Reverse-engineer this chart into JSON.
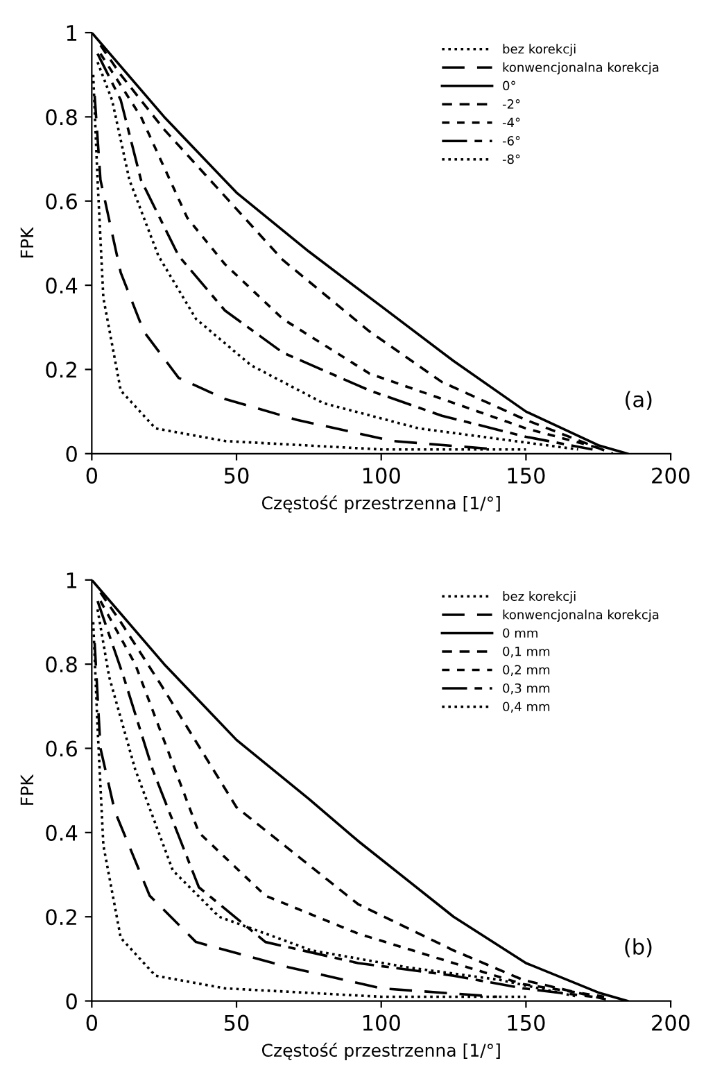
{
  "chart_data": [
    {
      "type": "line",
      "xlabel": "Częstość przestrzenna [1/°]",
      "ylabel": "FPK",
      "xlim": [
        0,
        200
      ],
      "xticks": [
        0,
        50,
        100,
        150,
        200
      ],
      "ylim": [
        0,
        1
      ],
      "yticks": [
        0,
        0.2,
        0.4,
        0.6,
        0.8,
        1
      ],
      "legend": "top right",
      "grid": false,
      "annotations": [
        "(a)"
      ],
      "series": [
        {
          "name": "bez korekcji",
          "color": "#000000",
          "line_style": "dotted",
          "x": [
            0.5,
            2,
            4,
            10,
            22,
            46,
            100,
            150
          ],
          "values": [
            0.9,
            0.65,
            0.37,
            0.15,
            0.06,
            0.03,
            0.01,
            0.01
          ]
        },
        {
          "name": "konwencjonalna korekcja",
          "color": "#000000",
          "line_style": "dashed",
          "x": [
            1,
            3,
            10,
            18,
            30,
            46,
            71,
            104,
            140
          ],
          "values": [
            0.85,
            0.65,
            0.43,
            0.29,
            0.18,
            0.13,
            0.08,
            0.03,
            0.01
          ]
        },
        {
          "name": "0°",
          "color": "#000000",
          "line_style": "solid",
          "x": [
            0,
            25,
            50,
            75,
            100,
            125,
            150,
            175,
            185
          ],
          "values": [
            1,
            0.8,
            0.62,
            0.48,
            0.35,
            0.22,
            0.1,
            0.02,
            0
          ]
        },
        {
          "name": "-2°",
          "color": "#000000",
          "line_style": "dashed",
          "x": [
            3,
            10,
            25,
            66,
            96,
            121,
            150,
            180
          ],
          "values": [
            0.97,
            0.9,
            0.77,
            0.46,
            0.29,
            0.17,
            0.08,
            0
          ]
        },
        {
          "name": "-4°",
          "color": "#000000",
          "line_style": "dashed",
          "x": [
            3,
            17,
            33,
            46,
            66,
            96,
            121,
            150,
            177
          ],
          "values": [
            0.95,
            0.8,
            0.56,
            0.45,
            0.32,
            0.19,
            0.13,
            0.06,
            0.01
          ]
        },
        {
          "name": "-6°",
          "color": "#000000",
          "line_style": "dashed",
          "x": [
            2,
            10,
            17,
            30,
            46,
            66,
            96,
            121,
            150,
            173
          ],
          "values": [
            0.95,
            0.84,
            0.65,
            0.47,
            0.34,
            0.24,
            0.15,
            0.09,
            0.04,
            0.01
          ]
        },
        {
          "name": "-8°",
          "color": "#000000",
          "line_style": "dotted",
          "x": [
            2,
            7,
            13,
            23,
            36,
            55,
            80,
            113,
            146,
            168
          ],
          "values": [
            0.93,
            0.84,
            0.65,
            0.47,
            0.32,
            0.21,
            0.12,
            0.06,
            0.03,
            0.01
          ]
        }
      ]
    },
    {
      "type": "line",
      "xlabel": "Częstość przestrzenna [1/°]",
      "ylabel": "FPK",
      "xlim": [
        0,
        200
      ],
      "xticks": [
        0,
        50,
        100,
        150,
        200
      ],
      "ylim": [
        0,
        1
      ],
      "yticks": [
        0,
        0.2,
        0.4,
        0.6,
        0.8,
        1
      ],
      "legend": "top right",
      "grid": false,
      "annotations": [
        "(b)"
      ],
      "series": [
        {
          "name": "bez korekcji",
          "color": "#000000",
          "line_style": "dotted",
          "x": [
            0.5,
            2,
            4,
            10,
            22,
            46,
            100,
            150
          ],
          "values": [
            0.9,
            0.65,
            0.37,
            0.15,
            0.06,
            0.03,
            0.01,
            0.01
          ]
        },
        {
          "name": "konwencjonalna korekcja",
          "color": "#000000",
          "line_style": "dashed",
          "x": [
            1,
            3,
            8,
            20,
            36,
            68,
            100,
            140
          ],
          "values": [
            0.85,
            0.6,
            0.45,
            0.25,
            0.14,
            0.08,
            0.03,
            0.01
          ]
        },
        {
          "name": "0 mm",
          "color": "#000000",
          "line_style": "solid",
          "x": [
            0,
            25,
            50,
            75,
            92,
            125,
            150,
            175,
            185
          ],
          "values": [
            1,
            0.8,
            0.62,
            0.48,
            0.38,
            0.2,
            0.09,
            0.02,
            0
          ]
        },
        {
          "name": "0,1 mm",
          "color": "#000000",
          "line_style": "dashed",
          "x": [
            3,
            10,
            24,
            50,
            92,
            125,
            149,
            180
          ],
          "values": [
            0.97,
            0.9,
            0.75,
            0.46,
            0.23,
            0.12,
            0.05,
            0
          ]
        },
        {
          "name": "0,2 mm",
          "color": "#000000",
          "line_style": "dashed",
          "x": [
            3,
            15,
            37,
            60,
            92,
            125,
            149,
            177
          ],
          "values": [
            0.95,
            0.8,
            0.4,
            0.25,
            0.16,
            0.09,
            0.04,
            0.01
          ]
        },
        {
          "name": "0,3 mm",
          "color": "#000000",
          "line_style": "dashed",
          "x": [
            2,
            11,
            21,
            37,
            60,
            92,
            125,
            149,
            173
          ],
          "values": [
            0.95,
            0.77,
            0.55,
            0.27,
            0.14,
            0.09,
            0.06,
            0.03,
            0.01
          ]
        },
        {
          "name": "0,4 mm",
          "color": "#000000",
          "line_style": "dotted",
          "x": [
            2,
            6,
            15,
            28,
            44,
            76,
            109,
            141,
            168
          ],
          "values": [
            0.93,
            0.77,
            0.55,
            0.31,
            0.2,
            0.12,
            0.08,
            0.05,
            0.01
          ]
        }
      ]
    }
  ]
}
